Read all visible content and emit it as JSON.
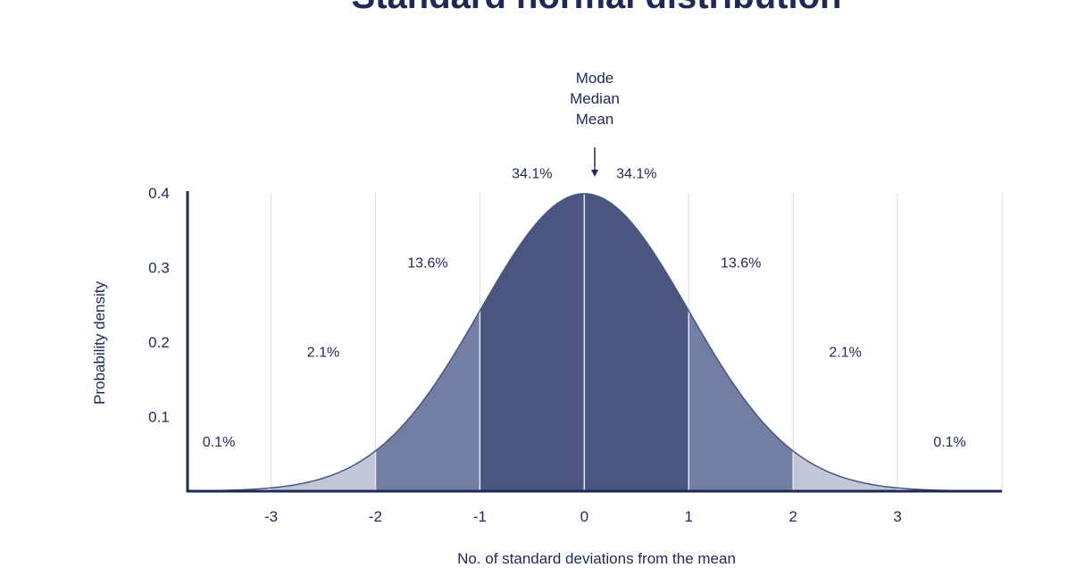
{
  "chart_data": {
    "type": "area",
    "title": "Standard normal distribution",
    "xlabel": "No. of standard deviations from the mean",
    "ylabel": "Probability density",
    "xlim": [
      -3.8,
      4.0
    ],
    "ylim": [
      0,
      0.4
    ],
    "x_ticks": [
      "-3",
      "-2",
      "-1",
      "0",
      "1",
      "2",
      "3"
    ],
    "x_tick_values": [
      -3,
      -2,
      -1,
      0,
      1,
      2,
      3
    ],
    "y_ticks": [
      "0.1",
      "0.2",
      "0.3",
      "0.4"
    ],
    "y_tick_values": [
      0.1,
      0.2,
      0.3,
      0.4
    ],
    "curve": "standard normal pdf",
    "regions": [
      {
        "from": -4,
        "to": -3,
        "label": "0.1%",
        "label_x": -3.5,
        "label_y": 0.06,
        "color": "#ffffff"
      },
      {
        "from": -3,
        "to": -2,
        "label": "2.1%",
        "label_x": -2.5,
        "label_y": 0.18,
        "color": "#c2c7d8"
      },
      {
        "from": -2,
        "to": -1,
        "label": "13.6%",
        "label_x": -1.5,
        "label_y": 0.3,
        "color": "#727ea4"
      },
      {
        "from": -1,
        "to": 0,
        "label": "34.1%",
        "label_x": -0.5,
        "label_y": 0.42,
        "color": "#4a5580"
      },
      {
        "from": 0,
        "to": 1,
        "label": "34.1%",
        "label_x": 0.5,
        "label_y": 0.42,
        "color": "#4a5580"
      },
      {
        "from": 1,
        "to": 2,
        "label": "13.6%",
        "label_x": 1.5,
        "label_y": 0.3,
        "color": "#727ea4"
      },
      {
        "from": 2,
        "to": 3,
        "label": "2.1%",
        "label_x": 2.5,
        "label_y": 0.18,
        "color": "#c2c7d8"
      },
      {
        "from": 3,
        "to": 4,
        "label": "0.1%",
        "label_x": 3.5,
        "label_y": 0.06,
        "color": "#ffffff"
      }
    ],
    "annotation": [
      "Mode",
      "Median",
      "Mean"
    ],
    "annotation_x": 0,
    "grid": true
  },
  "colors": {
    "axis": "#1e2a55",
    "text": "#1e2a55",
    "grid": "#d9dbe2",
    "divider": "#e6e8f0"
  }
}
